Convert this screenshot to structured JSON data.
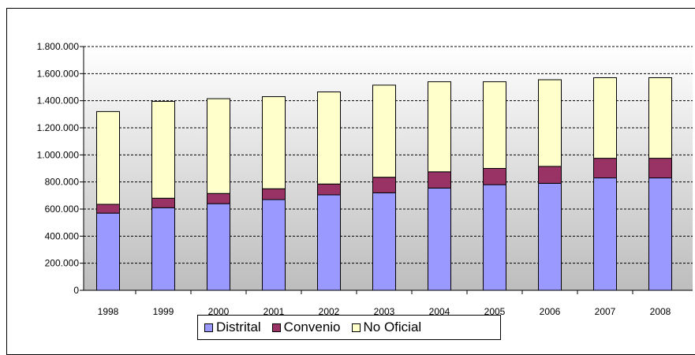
{
  "chart_data": {
    "type": "bar",
    "stacked": true,
    "categories": [
      "1998",
      "1999",
      "2000",
      "2001",
      "2002",
      "2003",
      "2004",
      "2005",
      "2006",
      "2007",
      "2008"
    ],
    "series": [
      {
        "name": "Distrital",
        "color": "#9999ff",
        "values": [
          570000,
          610000,
          640000,
          670000,
          705000,
          720000,
          755000,
          780000,
          790000,
          830000,
          830000
        ]
      },
      {
        "name": "Convenio",
        "color": "#993366",
        "values": [
          65000,
          70000,
          75000,
          80000,
          80000,
          115000,
          120000,
          120000,
          125000,
          145000,
          145000
        ]
      },
      {
        "name": "No Oficial",
        "color": "#ffffcc",
        "values": [
          685000,
          715000,
          700000,
          680000,
          680000,
          680000,
          665000,
          640000,
          640000,
          595000,
          595000
        ]
      }
    ],
    "y_tick_labels": [
      "0",
      "200.000",
      "400.000",
      "600.000",
      "800.000",
      "1.000.000",
      "1.200.000",
      "1.400.000",
      "1.600.000",
      "1.800.000"
    ],
    "ylim": [
      0,
      1800000
    ],
    "grid": "dashed horizontal",
    "legend_position": "bottom"
  }
}
